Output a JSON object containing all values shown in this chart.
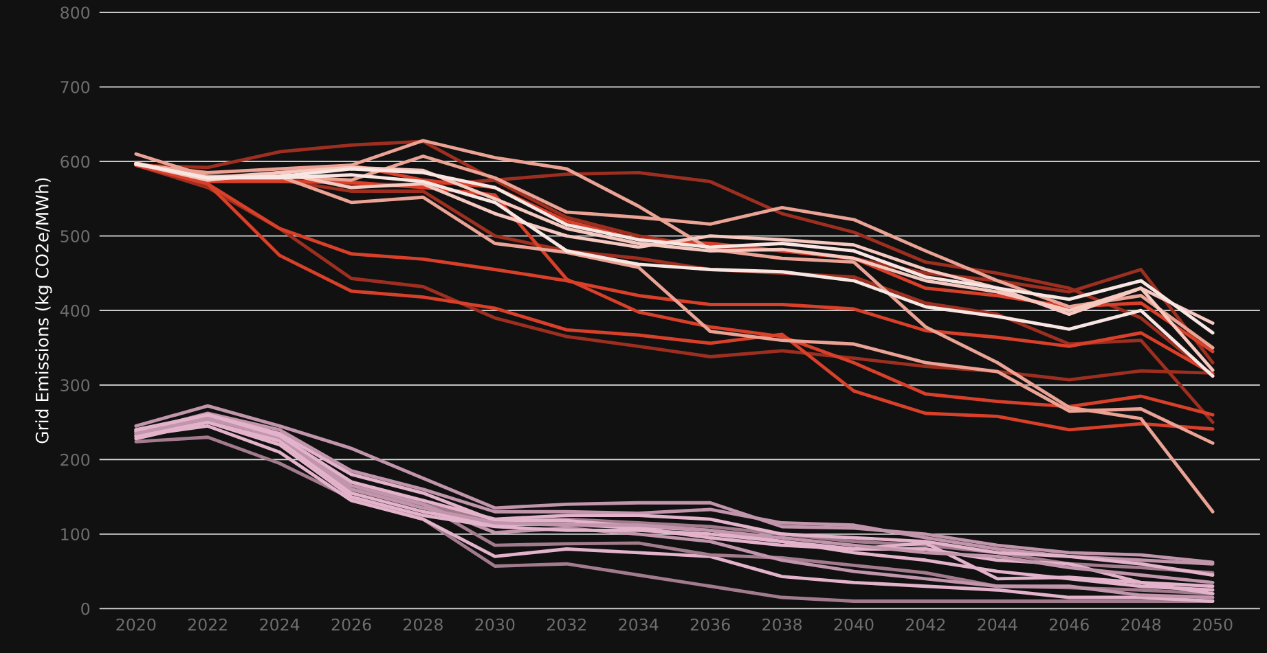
{
  "chart_data": {
    "type": "line",
    "ylabel": "Grid Emissions (kg CO2e/MWh)",
    "x": [
      2020,
      2022,
      2024,
      2026,
      2028,
      2030,
      2032,
      2034,
      2036,
      2038,
      2040,
      2042,
      2044,
      2046,
      2048,
      2050
    ],
    "xlim": [
      2019,
      2051.3
    ],
    "xticks": [
      2020,
      2022,
      2024,
      2026,
      2028,
      2030,
      2032,
      2034,
      2036,
      2038,
      2040,
      2042,
      2044,
      2046,
      2048,
      2050
    ],
    "ylim": [
      0,
      800
    ],
    "yticks": [
      0,
      100,
      200,
      300,
      400,
      500,
      600,
      700,
      800
    ],
    "grid": "y",
    "legend": false,
    "marker": "none",
    "line_style": "solid",
    "series": [
      {
        "color": "#9e2f20",
        "values": [
          595,
          592,
          613,
          622,
          627,
          575,
          525,
          500,
          485,
          480,
          470,
          450,
          440,
          425,
          455,
          330
        ]
      },
      {
        "color": "#9e2f20",
        "values": [
          596,
          580,
          575,
          570,
          568,
          575,
          583,
          585,
          573,
          530,
          505,
          465,
          450,
          430,
          390,
          312
        ]
      },
      {
        "color": "#9e2f20",
        "values": [
          595,
          565,
          510,
          443,
          432,
          390,
          365,
          352,
          338,
          346,
          336,
          325,
          318,
          307,
          319,
          316
        ]
      },
      {
        "color": "#9e2f20",
        "values": [
          595,
          580,
          575,
          560,
          560,
          500,
          480,
          470,
          455,
          450,
          445,
          410,
          395,
          355,
          360,
          250
        ]
      },
      {
        "color": "#d9402a",
        "values": [
          595,
          570,
          474,
          426,
          418,
          403,
          374,
          367,
          356,
          368,
          292,
          262,
          258,
          240,
          248,
          241
        ]
      },
      {
        "color": "#d9402a",
        "values": [
          596,
          570,
          510,
          476,
          469,
          455,
          440,
          420,
          408,
          408,
          402,
          373,
          364,
          352,
          370,
          315
        ]
      },
      {
        "color": "#d9402a",
        "values": [
          595,
          573,
          573,
          572,
          565,
          555,
          442,
          398,
          378,
          365,
          330,
          288,
          278,
          271,
          285,
          260
        ]
      },
      {
        "color": "#d9402a",
        "values": [
          597,
          573,
          585,
          595,
          575,
          565,
          520,
          495,
          490,
          480,
          470,
          430,
          420,
          405,
          410,
          345
        ]
      },
      {
        "color": "#eba395",
        "values": [
          610,
          580,
          580,
          545,
          552,
          490,
          478,
          458,
          372,
          360,
          355,
          330,
          318,
          265,
          268,
          222
        ]
      },
      {
        "color": "#eba395",
        "values": [
          598,
          578,
          580,
          575,
          607,
          578,
          532,
          525,
          516,
          538,
          522,
          480,
          440,
          405,
          420,
          350
        ]
      },
      {
        "color": "#eba395",
        "values": [
          596,
          585,
          590,
          595,
          628,
          605,
          590,
          540,
          482,
          470,
          465,
          378,
          330,
          270,
          255,
          130
        ]
      },
      {
        "color": "#f5c8c0",
        "values": [
          597,
          575,
          585,
          592,
          588,
          550,
          510,
          490,
          480,
          482,
          470,
          440,
          425,
          400,
          430,
          383
        ]
      },
      {
        "color": "#f5c8c0",
        "values": [
          596,
          578,
          585,
          565,
          570,
          530,
          500,
          485,
          500,
          495,
          488,
          455,
          430,
          395,
          430,
          320
        ]
      },
      {
        "color": "#f8e6e3",
        "values": [
          597,
          578,
          580,
          590,
          585,
          565,
          515,
          495,
          485,
          490,
          480,
          445,
          430,
          415,
          440,
          370
        ]
      },
      {
        "color": "#f8e6e3",
        "values": [
          597,
          578,
          578,
          582,
          573,
          545,
          480,
          462,
          455,
          452,
          440,
          405,
          392,
          375,
          400,
          312
        ]
      },
      {
        "color": "#c195ab",
        "values": [
          245,
          272,
          245,
          215,
          175,
          135,
          140,
          142,
          142,
          110,
          108,
          100,
          85,
          75,
          72,
          62
        ]
      },
      {
        "color": "#c195ab",
        "values": [
          237,
          262,
          240,
          185,
          160,
          130,
          130,
          128,
          133,
          115,
          112,
          95,
          80,
          70,
          65,
          60
        ]
      },
      {
        "color": "#a27b8d",
        "values": [
          230,
          255,
          225,
          160,
          140,
          118,
          120,
          115,
          110,
          100,
          90,
          85,
          75,
          60,
          55,
          48
        ]
      },
      {
        "color": "#a27b8d",
        "values": [
          224,
          230,
          195,
          148,
          120,
          57,
          60,
          45,
          30,
          15,
          10,
          10,
          10,
          10,
          10,
          10
        ]
      },
      {
        "color": "#e3b3cb",
        "values": [
          232,
          245,
          210,
          145,
          120,
          70,
          80,
          75,
          70,
          43,
          35,
          30,
          25,
          15,
          15,
          10
        ]
      },
      {
        "color": "#a27b8d",
        "values": [
          235,
          252,
          230,
          170,
          140,
          85,
          87,
          88,
          72,
          68,
          58,
          48,
          30,
          28,
          25,
          20
        ]
      },
      {
        "color": "#c195ab",
        "values": [
          240,
          258,
          228,
          165,
          140,
          102,
          108,
          100,
          90,
          65,
          50,
          40,
          30,
          30,
          18,
          15
        ]
      },
      {
        "color": "#e3b3cb",
        "values": [
          238,
          260,
          235,
          180,
          155,
          118,
          118,
          110,
          105,
          90,
          80,
          88,
          40,
          42,
          35,
          30
        ]
      },
      {
        "color": "#e3b3cb",
        "values": [
          232,
          250,
          225,
          155,
          130,
          113,
          113,
          108,
          95,
          85,
          80,
          80,
          65,
          60,
          35,
          20
        ]
      },
      {
        "color": "#c195ab",
        "values": [
          235,
          255,
          230,
          160,
          135,
          115,
          112,
          112,
          105,
          95,
          85,
          75,
          70,
          55,
          45,
          35
        ]
      },
      {
        "color": "#e3b3cb",
        "values": [
          228,
          250,
          220,
          150,
          125,
          110,
          105,
          105,
          100,
          90,
          75,
          65,
          50,
          40,
          30,
          25
        ]
      },
      {
        "color": "#e3b3cb",
        "values": [
          240,
          260,
          232,
          170,
          145,
          120,
          125,
          125,
          120,
          100,
          95,
          90,
          75,
          70,
          60,
          45
        ]
      }
    ]
  }
}
